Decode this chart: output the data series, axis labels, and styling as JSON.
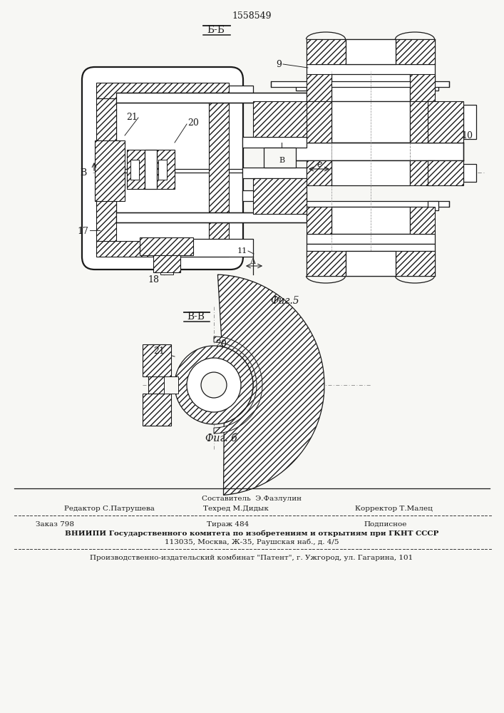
{
  "bg_color": "#f7f7f4",
  "lc": "#1a1a1a",
  "patent_number": "1558549",
  "fig5_section": "Б-Б",
  "fig5_caption": "Фиг.5",
  "fig6_section": "В-В",
  "fig6_caption": "Фиг. б",
  "footer_composer": "Составитель  Э.Фазлулин",
  "footer_editor": "Редактор С.Патрушева",
  "footer_tech": "Техред М.Дидык",
  "footer_corrector": "Корректор Т.Малец",
  "footer_order": "Заказ 798",
  "footer_print": "Тираж 484",
  "footer_sign": "Подписное",
  "footer_vnipi": "ВНИИПИ Государственного комитета по изобретениям и открытиям при ГКНТ СССР",
  "footer_addr": "113035, Москва, Ж-35, Раушская наб., д. 4/5",
  "footer_plant": "Производственно-издательский комбинат \"Патент\", г. Ужгород, ул. Гагарина, 101"
}
